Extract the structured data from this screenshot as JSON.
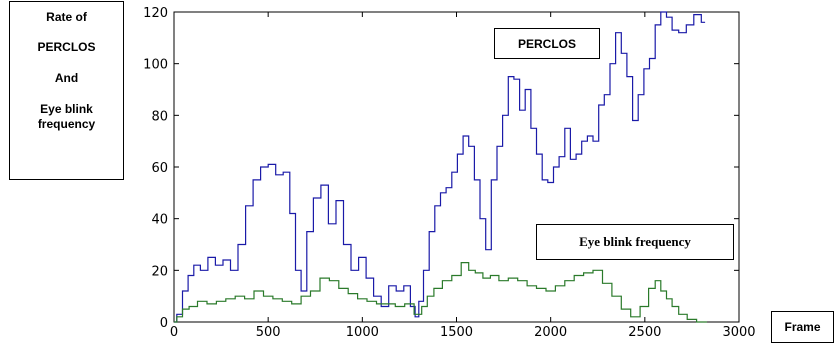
{
  "chart_data": {
    "type": "line",
    "ylabel": [
      "Rate of",
      "PERCLOS",
      "And",
      "Eye blink frequency"
    ],
    "xlabel": "Frame",
    "xlim": [
      0,
      3000
    ],
    "ylim": [
      0,
      120
    ],
    "xticks": [
      0,
      500,
      1000,
      1500,
      2000,
      2500,
      3000
    ],
    "yticks": [
      0,
      20,
      40,
      60,
      80,
      100,
      120
    ],
    "grid": false,
    "series": [
      {
        "name": "PERCLOS",
        "color": "#1a1aa8",
        "x": [
          0,
          30,
          60,
          90,
          120,
          160,
          200,
          240,
          280,
          320,
          360,
          400,
          440,
          480,
          520,
          560,
          600,
          630,
          660,
          690,
          720,
          760,
          800,
          840,
          880,
          920,
          960,
          1000,
          1040,
          1080,
          1120,
          1160,
          1200,
          1240,
          1270,
          1290,
          1310,
          1340,
          1370,
          1400,
          1430,
          1460,
          1490,
          1520,
          1550,
          1580,
          1610,
          1640,
          1670,
          1700,
          1730,
          1760,
          1790,
          1820,
          1850,
          1880,
          1910,
          1940,
          1970,
          2000,
          2030,
          2060,
          2090,
          2120,
          2150,
          2180,
          2210,
          2240,
          2270,
          2300,
          2330,
          2360,
          2390,
          2420,
          2450,
          2480,
          2510,
          2540,
          2570,
          2600,
          2630,
          2660,
          2700,
          2740,
          2780,
          2820
        ],
        "y": [
          0,
          3,
          12,
          18,
          22,
          20,
          25,
          22,
          24,
          20,
          30,
          45,
          55,
          60,
          61,
          57,
          58,
          42,
          20,
          12,
          35,
          48,
          53,
          38,
          47,
          30,
          20,
          25,
          17,
          10,
          6,
          14,
          12,
          14,
          6,
          2,
          8,
          20,
          35,
          45,
          50,
          52,
          58,
          65,
          72,
          68,
          55,
          40,
          28,
          55,
          68,
          80,
          95,
          94,
          82,
          90,
          75,
          65,
          55,
          54,
          60,
          64,
          75,
          63,
          65,
          70,
          72,
          70,
          84,
          88,
          100,
          112,
          104,
          95,
          78,
          88,
          98,
          102,
          115,
          120,
          118,
          113,
          112,
          115,
          119,
          116
        ]
      },
      {
        "name": "Eye blink frequency",
        "color": "#2a7a2a",
        "x": [
          0,
          30,
          60,
          100,
          150,
          200,
          250,
          300,
          350,
          400,
          450,
          500,
          550,
          600,
          650,
          700,
          750,
          800,
          850,
          900,
          950,
          1000,
          1050,
          1100,
          1150,
          1200,
          1250,
          1300,
          1330,
          1360,
          1400,
          1450,
          1500,
          1550,
          1580,
          1620,
          1660,
          1700,
          1750,
          1800,
          1850,
          1900,
          1950,
          2000,
          2050,
          2100,
          2150,
          2200,
          2250,
          2300,
          2350,
          2400,
          2450,
          2500,
          2540,
          2570,
          2600,
          2630,
          2660,
          2700,
          2750,
          2800,
          2830
        ],
        "y": [
          0,
          2,
          5,
          6,
          8,
          7,
          8,
          9,
          10,
          9,
          12,
          10,
          9,
          8,
          7,
          10,
          12,
          17,
          16,
          13,
          11,
          9,
          8,
          7,
          7,
          6,
          7,
          3,
          6,
          10,
          13,
          16,
          18,
          23,
          20,
          19,
          17,
          18,
          16,
          17,
          16,
          14,
          13,
          12,
          14,
          16,
          18,
          19,
          20,
          15,
          10,
          5,
          2,
          6,
          13,
          16,
          12,
          9,
          6,
          3,
          1,
          0,
          0
        ]
      }
    ],
    "annotations": [
      "PERCLOS",
      "Eye blink frequency"
    ]
  }
}
